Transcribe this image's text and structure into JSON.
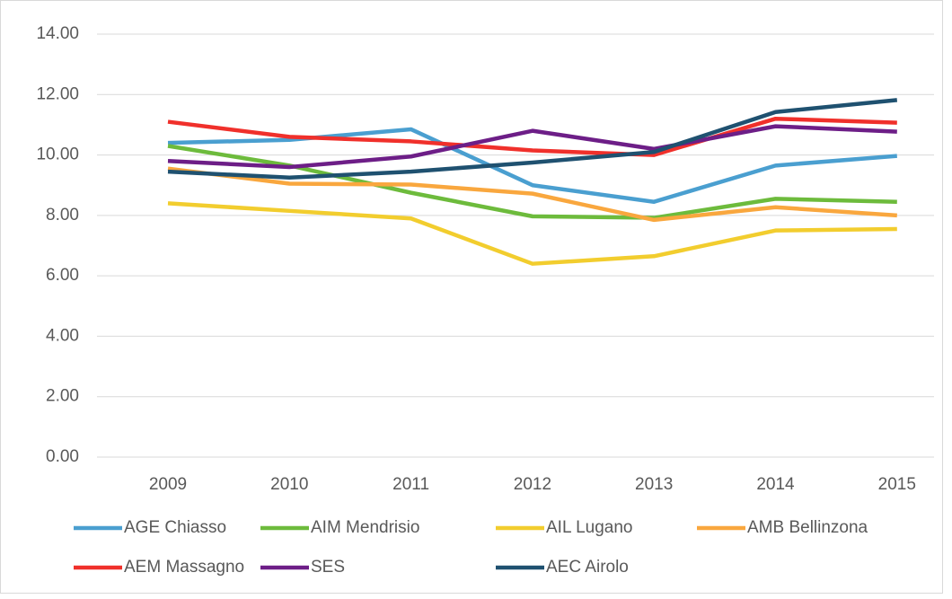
{
  "chart_data": {
    "type": "line",
    "categories": [
      "2009",
      "2010",
      "2011",
      "2012",
      "2013",
      "2014",
      "2015"
    ],
    "series": [
      {
        "name": "AGE Chiasso",
        "color": "#4a9fd0",
        "values": [
          10.4,
          10.5,
          10.85,
          9.0,
          8.45,
          9.65,
          9.97
        ]
      },
      {
        "name": "AIM Mendrisio",
        "color": "#6dbb3c",
        "values": [
          10.3,
          9.65,
          8.75,
          7.97,
          7.92,
          8.55,
          8.45
        ]
      },
      {
        "name": "AIL Lugano",
        "color": "#f2cd2e",
        "values": [
          8.4,
          8.15,
          7.9,
          6.4,
          6.65,
          7.5,
          7.55
        ]
      },
      {
        "name": "AMB Bellinzona",
        "color": "#f9a73e",
        "values": [
          9.55,
          9.05,
          9.02,
          8.72,
          7.85,
          8.27,
          8.0
        ]
      },
      {
        "name": "AEM Massagno",
        "color": "#f0302b",
        "values": [
          11.1,
          10.6,
          10.45,
          10.15,
          10.0,
          11.2,
          11.07
        ]
      },
      {
        "name": "SES",
        "color": "#6d1e87",
        "values": [
          9.8,
          9.6,
          9.95,
          10.8,
          10.2,
          10.95,
          10.77
        ]
      },
      {
        "name": "AEC Airolo",
        "color": "#1f5170",
        "values": [
          9.45,
          9.25,
          9.45,
          9.75,
          10.1,
          11.42,
          11.82
        ]
      }
    ],
    "ylim": [
      0,
      14
    ],
    "yticks": [
      {
        "value": 0,
        "label": "0.00"
      },
      {
        "value": 2,
        "label": "2.00"
      },
      {
        "value": 4,
        "label": "4.00"
      },
      {
        "value": 6,
        "label": "6.00"
      },
      {
        "value": 8,
        "label": "8.00"
      },
      {
        "value": 10,
        "label": "10.00"
      },
      {
        "value": 12,
        "label": "12.00"
      },
      {
        "value": 14,
        "label": "14.00"
      }
    ],
    "grid": true,
    "legend": "bottom"
  }
}
